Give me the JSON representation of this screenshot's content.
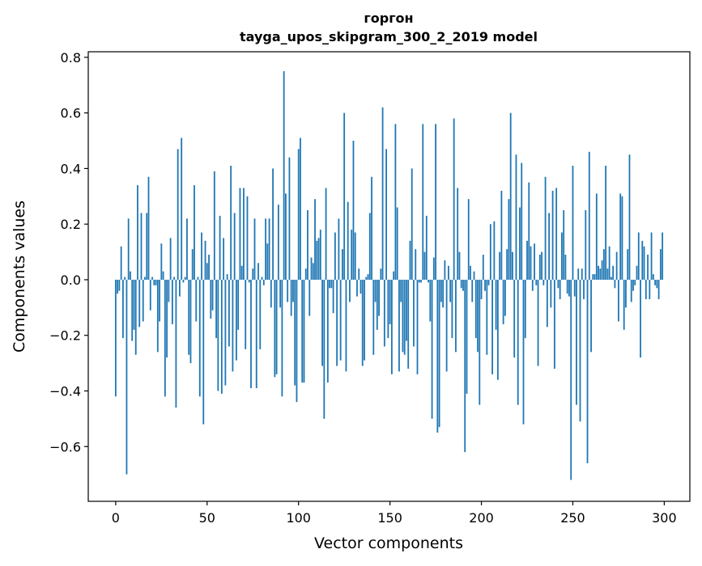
{
  "chart_data": {
    "type": "bar",
    "title": "горгон",
    "subtitle": "tayga_upos_skipgram_300_2_2019 model",
    "xlabel": "Vector components",
    "ylabel": "Components values",
    "xlim": [
      -15,
      314
    ],
    "ylim": [
      -0.797,
      0.82
    ],
    "xticks": [
      0,
      50,
      100,
      150,
      200,
      250,
      300
    ],
    "xtick_labels": [
      "0",
      "50",
      "100",
      "150",
      "200",
      "250",
      "300"
    ],
    "yticks": [
      -0.6,
      -0.4,
      -0.2,
      0.0,
      0.2,
      0.4,
      0.6,
      0.8
    ],
    "ytick_labels": [
      "−0.6",
      "−0.4",
      "−0.2",
      "0.0",
      "0.2",
      "0.4",
      "0.6",
      "0.8"
    ],
    "grid": false,
    "bar_color": "#1f77b4",
    "values": [
      -0.42,
      -0.05,
      -0.04,
      0.12,
      -0.21,
      0.01,
      -0.7,
      0.22,
      0.03,
      -0.22,
      -0.18,
      -0.27,
      0.34,
      -0.17,
      0.24,
      -0.15,
      0.01,
      0.24,
      0.37,
      -0.11,
      0.01,
      -0.02,
      -0.02,
      -0.26,
      -0.15,
      0.13,
      0.03,
      -0.42,
      -0.28,
      -0.08,
      0.15,
      -0.16,
      0.01,
      -0.46,
      0.47,
      -0.06,
      0.51,
      -0.01,
      0.01,
      0.22,
      -0.27,
      -0.3,
      0.11,
      0.34,
      -0.15,
      0.01,
      -0.42,
      0.17,
      -0.52,
      0.14,
      0.06,
      0.09,
      -0.14,
      -0.11,
      0.39,
      -0.21,
      -0.4,
      0.23,
      -0.41,
      0.15,
      -0.38,
      0.02,
      -0.24,
      0.41,
      -0.33,
      0.24,
      -0.29,
      -0.18,
      0.33,
      0.05,
      0.33,
      -0.25,
      0.3,
      -0.01,
      -0.39,
      0.04,
      0.22,
      -0.39,
      0.06,
      -0.25,
      0.01,
      -0.02,
      0.22,
      0.13,
      0.22,
      -0.1,
      0.4,
      -0.35,
      -0.34,
      0.27,
      -0.1,
      -0.42,
      0.75,
      0.31,
      -0.08,
      0.44,
      -0.13,
      -0.08,
      -0.38,
      -0.44,
      0.47,
      0.51,
      -0.37,
      -0.37,
      0.04,
      0.25,
      -0.13,
      0.08,
      0.06,
      0.29,
      0.14,
      0.15,
      0.18,
      -0.31,
      -0.5,
      0.33,
      -0.37,
      -0.03,
      -0.03,
      -0.12,
      0.17,
      -0.31,
      0.22,
      -0.29,
      0.11,
      0.6,
      -0.33,
      0.28,
      -0.08,
      0.18,
      0.5,
      0.17,
      -0.06,
      0.04,
      -0.05,
      -0.31,
      -0.29,
      0.01,
      0.02,
      0.24,
      0.37,
      -0.27,
      -0.08,
      -0.18,
      -0.13,
      0.04,
      0.62,
      -0.24,
      0.47,
      -0.21,
      -0.16,
      -0.34,
      0.03,
      0.56,
      0.26,
      -0.33,
      -0.08,
      -0.26,
      -0.27,
      -0.22,
      -0.32,
      0.14,
      0.4,
      -0.24,
      0.11,
      -0.34,
      -0.01,
      -0.01,
      0.56,
      0.1,
      0.23,
      -0.01,
      -0.15,
      -0.5,
      0.08,
      0.56,
      -0.55,
      -0.53,
      -0.08,
      -0.1,
      0.07,
      -0.33,
      0.05,
      -0.08,
      -0.21,
      0.58,
      -0.26,
      0.33,
      0.1,
      -0.03,
      -0.04,
      -0.62,
      -0.41,
      0.29,
      0.05,
      -0.08,
      0.03,
      -0.21,
      -0.26,
      -0.45,
      -0.07,
      0.09,
      -0.04,
      -0.27,
      -0.02,
      0.2,
      -0.34,
      0.21,
      -0.18,
      -0.36,
      0.1,
      0.32,
      -0.16,
      -0.13,
      0.11,
      0.29,
      0.6,
      0.1,
      -0.28,
      0.45,
      -0.45,
      0.26,
      0.42,
      -0.52,
      -0.21,
      0.14,
      0.35,
      0.12,
      -0.04,
      0.13,
      -0.02,
      -0.31,
      0.09,
      0.1,
      -0.02,
      0.37,
      -0.17,
      0.24,
      -0.1,
      0.32,
      -0.32,
      0.33,
      -0.03,
      -0.07,
      0.17,
      0.25,
      0.09,
      -0.05,
      -0.06,
      -0.72,
      0.41,
      -0.06,
      -0.45,
      0.04,
      -0.51,
      0.04,
      -0.07,
      0.25,
      -0.66,
      0.46,
      -0.26,
      0.02,
      0.02,
      0.31,
      0.05,
      0.04,
      0.07,
      0.11,
      0.41,
      0.04,
      0.12,
      0.01,
      0.05,
      -0.03,
      0.1,
      -0.15,
      0.31,
      0.3,
      -0.18,
      -0.1,
      0.11,
      0.45,
      -0.08,
      -0.04,
      -0.02,
      0.05,
      0.17,
      -0.28,
      0.14,
      0.12,
      -0.07,
      0.09,
      -0.07,
      0.17,
      0.02,
      -0.02,
      -0.03,
      -0.07,
      0.11,
      0.17
    ]
  }
}
